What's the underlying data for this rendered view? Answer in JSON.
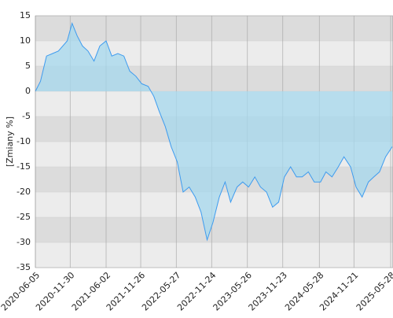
{
  "chart_data": {
    "type": "line",
    "y_label": "[Zmiany %]",
    "x": [
      "2020-06-05",
      "2020-07-01",
      "2020-08-01",
      "2020-09-01",
      "2020-10-01",
      "2020-11-15",
      "2020-12-10",
      "2021-01-05",
      "2021-02-01",
      "2021-03-01",
      "2021-04-01",
      "2021-05-01",
      "2021-06-02",
      "2021-07-01",
      "2021-08-01",
      "2021-09-01",
      "2021-10-01",
      "2021-11-01",
      "2021-12-01",
      "2022-01-03",
      "2022-02-01",
      "2022-03-01",
      "2022-04-01",
      "2022-05-01",
      "2022-06-01",
      "2022-07-01",
      "2022-08-01",
      "2022-09-01",
      "2022-10-01",
      "2022-11-01",
      "2022-12-01",
      "2023-01-02",
      "2023-02-01",
      "2023-03-01",
      "2023-04-03",
      "2023-05-02",
      "2023-06-01",
      "2023-07-03",
      "2023-08-01",
      "2023-09-01",
      "2023-10-02",
      "2023-11-02",
      "2023-12-01",
      "2024-01-02",
      "2024-02-01",
      "2024-03-01",
      "2024-04-02",
      "2024-05-02",
      "2024-06-03",
      "2024-07-01",
      "2024-08-01",
      "2024-09-02",
      "2024-10-01",
      "2024-11-04",
      "2024-12-02",
      "2025-01-02",
      "2025-02-03",
      "2025-03-03",
      "2025-04-01",
      "2025-05-02",
      "2025-06-05"
    ],
    "values": [
      0,
      2,
      7,
      7.5,
      8,
      10,
      13.5,
      11,
      9,
      8,
      6,
      9,
      10,
      7,
      7.5,
      7,
      4,
      3,
      1.5,
      1,
      -1,
      -4,
      -7,
      -11,
      -14,
      -20,
      -19,
      -21,
      -24,
      -29.5,
      -26,
      -21,
      -18,
      -22,
      -19,
      -18,
      -19,
      -17,
      -19,
      -20,
      -23,
      -22,
      -17,
      -15,
      -17,
      -17,
      -16,
      -18,
      -18,
      -16,
      -17,
      -15,
      -13,
      -15,
      -19,
      -21,
      -18,
      -17,
      -16,
      -13,
      -11
    ],
    "color": "#3d9bef",
    "fill": "#a6d8ee",
    "xlim": [
      "2020-06-05",
      "2025-06-09"
    ],
    "xticks": [
      "2020-06-05",
      "2020-11-30",
      "2021-06-02",
      "2021-11-26",
      "2022-05-27",
      "2022-11-24",
      "2023-05-26",
      "2023-11-23",
      "2024-05-28",
      "2024-11-21",
      "2025-05-28"
    ],
    "ylim": [
      -35,
      15
    ],
    "yticks": [
      -35,
      -30,
      -25,
      -20,
      -15,
      -10,
      -5,
      0,
      5,
      10,
      15
    ],
    "grid": true
  }
}
